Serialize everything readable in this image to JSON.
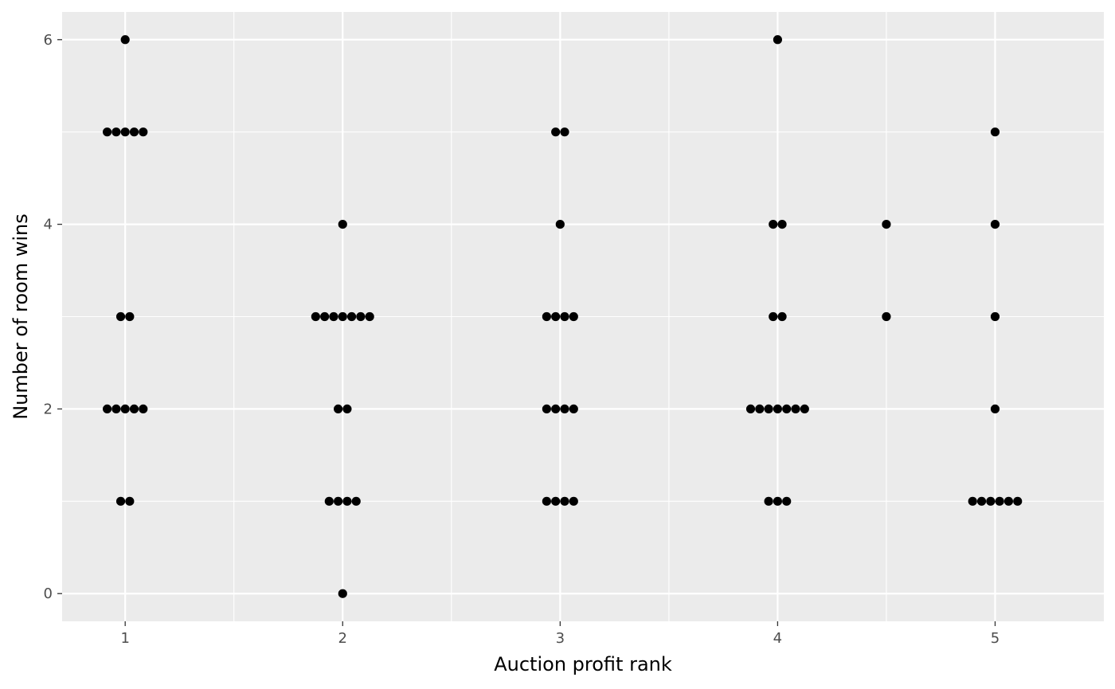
{
  "chart_data": {
    "type": "scatter",
    "xlabel": "Auction profit rank",
    "ylabel": "Number of room wins",
    "xlim": [
      0.71,
      5.5
    ],
    "ylim": [
      -0.3,
      6.3
    ],
    "x_ticks": [
      1,
      2,
      3,
      4,
      5
    ],
    "x_minor_ticks": [
      1.5,
      2.5,
      3.5,
      4.5
    ],
    "y_ticks": [
      0,
      2,
      4,
      6
    ],
    "y_minor_ticks": [
      1,
      3,
      5
    ],
    "grid": true,
    "point_color": "#000000",
    "panel_color": "#EBEBEB",
    "grid_color": "#FFFFFF",
    "tick_color": "#333333",
    "points": [
      {
        "x": 1,
        "y": 6,
        "count": 1
      },
      {
        "x": 1,
        "y": 5,
        "count": 5
      },
      {
        "x": 1,
        "y": 3,
        "count": 2
      },
      {
        "x": 1,
        "y": 2,
        "count": 5
      },
      {
        "x": 1,
        "y": 1,
        "count": 2
      },
      {
        "x": 2,
        "y": 4,
        "count": 1
      },
      {
        "x": 2,
        "y": 3,
        "count": 7
      },
      {
        "x": 2,
        "y": 2,
        "count": 2
      },
      {
        "x": 2,
        "y": 1,
        "count": 4
      },
      {
        "x": 2,
        "y": 0,
        "count": 1
      },
      {
        "x": 3,
        "y": 5,
        "count": 2
      },
      {
        "x": 3,
        "y": 4,
        "count": 1
      },
      {
        "x": 3,
        "y": 3,
        "count": 4
      },
      {
        "x": 3,
        "y": 2,
        "count": 4
      },
      {
        "x": 3,
        "y": 1,
        "count": 4
      },
      {
        "x": 4,
        "y": 6,
        "count": 1
      },
      {
        "x": 4,
        "y": 4,
        "count": 2
      },
      {
        "x": 4,
        "y": 3,
        "count": 2
      },
      {
        "x": 4,
        "y": 2,
        "count": 7
      },
      {
        "x": 4,
        "y": 1,
        "count": 3
      },
      {
        "x": 4.5,
        "y": 4,
        "count": 1
      },
      {
        "x": 4.5,
        "y": 3,
        "count": 1
      },
      {
        "x": 5,
        "y": 5,
        "count": 1
      },
      {
        "x": 5,
        "y": 4,
        "count": 1
      },
      {
        "x": 5,
        "y": 3,
        "count": 1
      },
      {
        "x": 5,
        "y": 2,
        "count": 1
      },
      {
        "x": 5,
        "y": 1,
        "count": 6
      }
    ]
  }
}
